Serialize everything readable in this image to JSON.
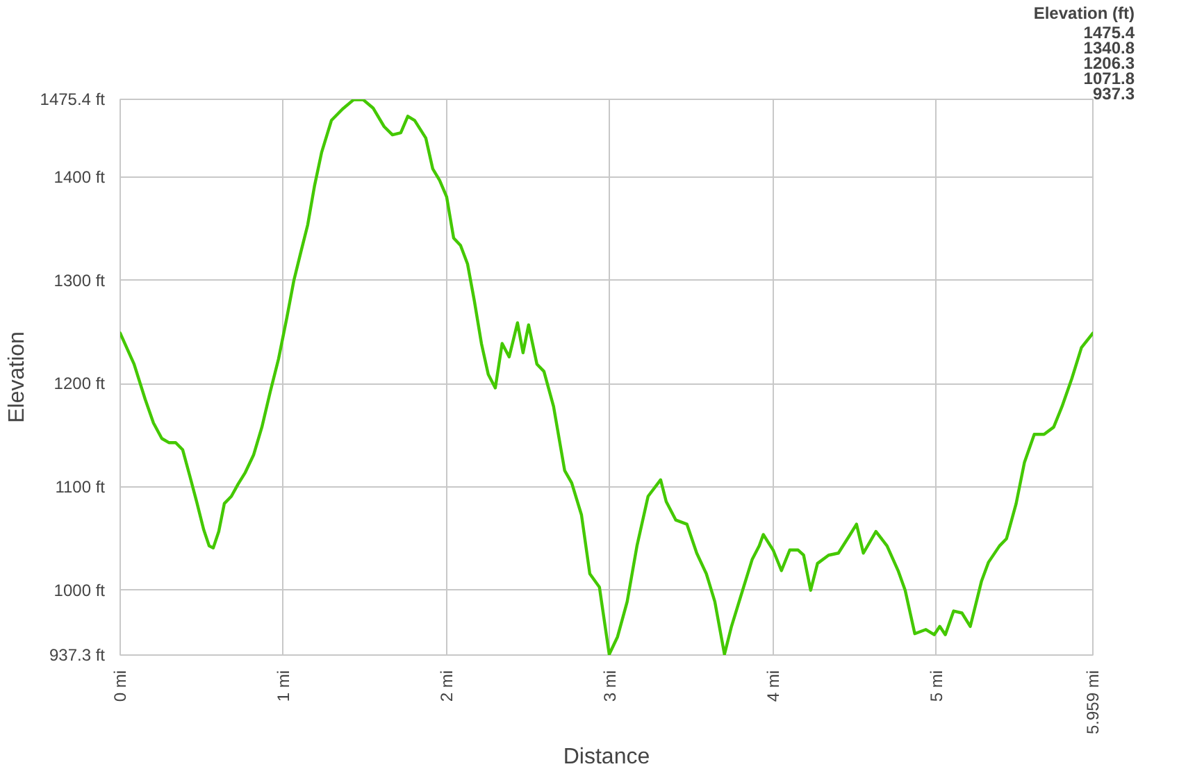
{
  "chart_data": {
    "type": "line",
    "xlabel": "Distance",
    "ylabel": "Elevation",
    "x": [
      0,
      0.085,
      0.153,
      0.204,
      0.255,
      0.298,
      0.34,
      0.383,
      0.426,
      0.468,
      0.511,
      0.545,
      0.57,
      0.604,
      0.638,
      0.681,
      0.723,
      0.766,
      0.817,
      0.868,
      0.919,
      0.97,
      1.021,
      1.064,
      1.106,
      1.149,
      1.191,
      1.234,
      1.294,
      1.362,
      1.43,
      1.489,
      1.549,
      1.617,
      1.668,
      1.719,
      1.762,
      1.804,
      1.872,
      1.915,
      1.957,
      2.0,
      2.043,
      2.085,
      2.128,
      2.17,
      2.213,
      2.255,
      2.298,
      2.34,
      2.383,
      2.434,
      2.468,
      2.502,
      2.553,
      2.596,
      2.655,
      2.723,
      2.766,
      2.826,
      2.877,
      2.936,
      2.996,
      3.047,
      3.106,
      3.166,
      3.234,
      3.311,
      3.345,
      3.404,
      3.472,
      3.532,
      3.591,
      3.643,
      3.702,
      3.745,
      3.813,
      3.872,
      3.915,
      3.94,
      4.0,
      4.051,
      4.102,
      4.153,
      4.187,
      4.23,
      4.272,
      4.34,
      4.4,
      4.468,
      4.511,
      4.553,
      4.63,
      4.698,
      4.766,
      4.809,
      4.868,
      4.936,
      4.987,
      5.021,
      5.055,
      5.106,
      5.157,
      5.208,
      5.277,
      5.319,
      5.387,
      5.43,
      5.489,
      5.54,
      5.6,
      5.66,
      5.719,
      5.77,
      5.83,
      5.889,
      5.959
    ],
    "series": [
      {
        "color": "#44c800",
        "values": [
          1249,
          1219,
          1185,
          1162,
          1147,
          1143,
          1143,
          1136,
          1111,
          1086,
          1059,
          1043,
          1041,
          1057,
          1084,
          1091,
          1103,
          1114,
          1131,
          1158,
          1192,
          1224,
          1264,
          1300,
          1327,
          1354,
          1392,
          1424,
          1455,
          1466,
          1475,
          1475,
          1467,
          1449,
          1441,
          1443,
          1459,
          1455,
          1438,
          1408,
          1397,
          1381,
          1341,
          1334,
          1316,
          1280,
          1239,
          1209,
          1196,
          1239,
          1226,
          1259,
          1230,
          1257,
          1219,
          1212,
          1178,
          1116,
          1104,
          1073,
          1016,
          1003,
          938,
          955,
          989,
          1043,
          1091,
          1107,
          1086,
          1068,
          1064,
          1036,
          1016,
          989,
          938,
          965,
          1000,
          1030,
          1043,
          1054,
          1039,
          1019,
          1039,
          1039,
          1034,
          1000,
          1026,
          1034,
          1036,
          1053,
          1064,
          1036,
          1057,
          1043,
          1019,
          1000,
          958,
          962,
          957,
          965,
          957,
          980,
          978,
          965,
          1009,
          1027,
          1043,
          1050,
          1084,
          1124,
          1151,
          1151,
          1158,
          1178,
          1205,
          1235,
          1249
        ]
      }
    ],
    "xlim": [
      0,
      5.959
    ],
    "xticks": [
      {
        "value": 0,
        "label": "0 mi"
      },
      {
        "value": 1,
        "label": "1 mi"
      },
      {
        "value": 2,
        "label": "2 mi"
      },
      {
        "value": 3,
        "label": "3 mi"
      },
      {
        "value": 4,
        "label": "4 mi"
      },
      {
        "value": 5,
        "label": "5 mi"
      },
      {
        "value": 5.959,
        "label": "5.959 mi"
      }
    ],
    "ylim": [
      937.3,
      1475.4
    ],
    "yticks": [
      {
        "value": 937.3,
        "label": "937.3 ft"
      },
      {
        "value": 1000,
        "label": "1000 ft"
      },
      {
        "value": 1100,
        "label": "1100 ft"
      },
      {
        "value": 1200,
        "label": "1200 ft"
      },
      {
        "value": 1300,
        "label": "1300 ft"
      },
      {
        "value": 1400,
        "label": "1400 ft"
      },
      {
        "value": 1475.4,
        "label": "1475.4 ft"
      }
    ],
    "annotations": [
      "Elevation (ft)",
      "1475.4",
      "1340.8",
      "1206.3",
      "1071.8",
      "937.3"
    ],
    "grid": true,
    "line_style": "solid"
  }
}
